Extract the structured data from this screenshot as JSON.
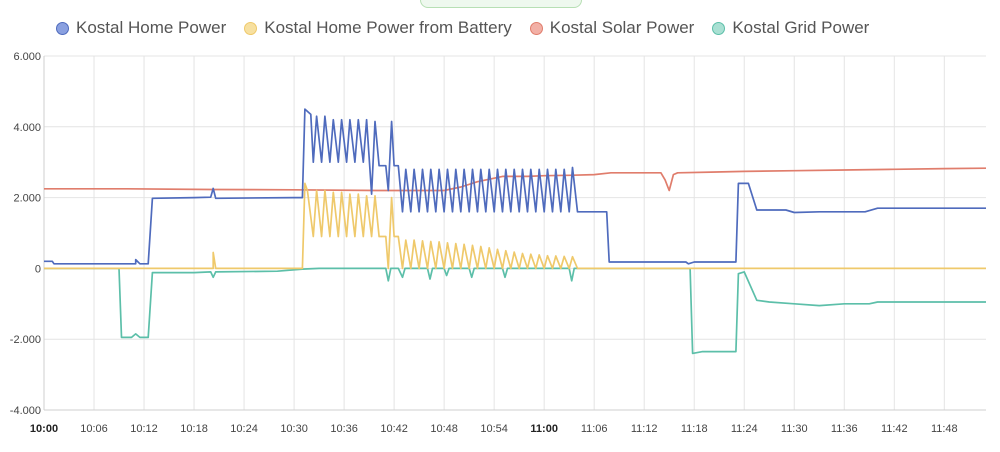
{
  "legend": [
    {
      "label": "Kostal Home Power",
      "color": "#4f6bbd"
    },
    {
      "label": "Kostal Home Power from Battery",
      "color": "#efc96b"
    },
    {
      "label": "Kostal Solar Power",
      "color": "#e07d6c"
    },
    {
      "label": "Kostal Grid Power",
      "color": "#5cbfa9"
    }
  ],
  "chart_data": {
    "type": "line",
    "title": "",
    "xlabel": "",
    "ylabel": "",
    "ylim": [
      -4000,
      6000
    ],
    "xlim": [
      "10:00",
      "11:53"
    ],
    "y_ticks": [
      6000,
      4000,
      2000,
      0,
      -2000,
      -4000
    ],
    "y_tick_labels": [
      "6.000",
      "4.000",
      "2.000",
      "0",
      "-2.000",
      "-4.000"
    ],
    "x_ticks": [
      "10:00",
      "10:06",
      "10:12",
      "10:18",
      "10:24",
      "10:30",
      "10:36",
      "10:42",
      "10:48",
      "10:54",
      "11:00",
      "11:06",
      "11:12",
      "11:18",
      "11:24",
      "11:30",
      "11:36",
      "11:42",
      "11:48"
    ],
    "x_bold_ticks": [
      "10:00",
      "11:00"
    ],
    "grid": true,
    "legend_position": "top",
    "series": [
      {
        "name": "Kostal Home Power",
        "color": "#4f6bbd",
        "points": [
          [
            "10:00",
            200
          ],
          [
            "10:01",
            200
          ],
          [
            "10:01.2",
            130
          ],
          [
            "10:11",
            130
          ],
          [
            "10:11",
            250
          ],
          [
            "10:11.5",
            130
          ],
          [
            "10:12.5",
            130
          ],
          [
            "10:13",
            1980
          ],
          [
            "10:18",
            2000
          ],
          [
            "10:20",
            2010
          ],
          [
            "10:20.3",
            2260
          ],
          [
            "10:20.6",
            1980
          ],
          [
            "10:30",
            2000
          ],
          [
            "10:31",
            2000
          ],
          [
            "10:31.3",
            4500
          ],
          [
            "10:32",
            4350
          ],
          [
            "10:32.3",
            3000
          ],
          [
            "10:32.7",
            4300
          ],
          [
            "10:33.3",
            3000
          ],
          [
            "10:33.7",
            4300
          ],
          [
            "10:34.3",
            3000
          ],
          [
            "10:34.7",
            4200
          ],
          [
            "10:35.3",
            3000
          ],
          [
            "10:35.7",
            4200
          ],
          [
            "10:36.3",
            3000
          ],
          [
            "10:36.7",
            4200
          ],
          [
            "10:37.3",
            3000
          ],
          [
            "10:37.7",
            4200
          ],
          [
            "10:38.3",
            3000
          ],
          [
            "10:38.7",
            4200
          ],
          [
            "10:39.3",
            2100
          ],
          [
            "10:39.7",
            4150
          ],
          [
            "10:40.2",
            2900
          ],
          [
            "10:41",
            2900
          ],
          [
            "10:41.3",
            2200
          ],
          [
            "10:41.7",
            4150
          ],
          [
            "10:42",
            2900
          ],
          [
            "10:42.5",
            2900
          ],
          [
            "10:43",
            1600
          ],
          [
            "10:43.4",
            2800
          ],
          [
            "10:44",
            1600
          ],
          [
            "10:44.4",
            2800
          ],
          [
            "10:45",
            1600
          ],
          [
            "10:45.4",
            2800
          ],
          [
            "10:46",
            1600
          ],
          [
            "10:46.4",
            2800
          ],
          [
            "10:47",
            1600
          ],
          [
            "10:47.4",
            2800
          ],
          [
            "10:48",
            1600
          ],
          [
            "10:48.4",
            2800
          ],
          [
            "10:49",
            1600
          ],
          [
            "10:49.4",
            2800
          ],
          [
            "10:50",
            1600
          ],
          [
            "10:50.4",
            2800
          ],
          [
            "10:51",
            1600
          ],
          [
            "10:51.4",
            2800
          ],
          [
            "10:52",
            1600
          ],
          [
            "10:52.4",
            2800
          ],
          [
            "10:53",
            1600
          ],
          [
            "10:53.4",
            2800
          ],
          [
            "10:54",
            1600
          ],
          [
            "10:54.4",
            2800
          ],
          [
            "10:55",
            1600
          ],
          [
            "10:55.4",
            2800
          ],
          [
            "10:56",
            1600
          ],
          [
            "10:56.4",
            2800
          ],
          [
            "10:57",
            1600
          ],
          [
            "10:57.4",
            2800
          ],
          [
            "10:58",
            1600
          ],
          [
            "10:58.4",
            2800
          ],
          [
            "10:59",
            1600
          ],
          [
            "10:59.4",
            2800
          ],
          [
            "11:00",
            1600
          ],
          [
            "11:00.4",
            2800
          ],
          [
            "11:01",
            1600
          ],
          [
            "11:01.4",
            2800
          ],
          [
            "11:02",
            1600
          ],
          [
            "11:02.4",
            2800
          ],
          [
            "11:03",
            1600
          ],
          [
            "11:03.4",
            2850
          ],
          [
            "11:04",
            1600
          ],
          [
            "11:07.5",
            1600
          ],
          [
            "11:07.8",
            180
          ],
          [
            "11:17",
            180
          ],
          [
            "11:17.3",
            130
          ],
          [
            "11:18",
            180
          ],
          [
            "11:22",
            180
          ],
          [
            "11:23",
            180
          ],
          [
            "11:23.3",
            2400
          ],
          [
            "11:24.5",
            2400
          ],
          [
            "11:25.5",
            1650
          ],
          [
            "11:29",
            1650
          ],
          [
            "11:30",
            1580
          ],
          [
            "11:33",
            1600
          ],
          [
            "11:36",
            1600
          ],
          [
            "11:38.5",
            1600
          ],
          [
            "11:40",
            1700
          ],
          [
            "11:44",
            1700
          ],
          [
            "11:50",
            1700
          ],
          [
            "11:53",
            1700
          ]
        ]
      },
      {
        "name": "Kostal Home Power from Battery",
        "color": "#efc96b",
        "points": [
          [
            "10:00",
            0
          ],
          [
            "10:20.3",
            0
          ],
          [
            "10:20.3",
            450
          ],
          [
            "10:20.6",
            0
          ],
          [
            "10:31",
            0
          ],
          [
            "10:31.3",
            2400
          ],
          [
            "10:31.6",
            2200
          ],
          [
            "10:32.3",
            900
          ],
          [
            "10:32.7",
            2200
          ],
          [
            "10:33.3",
            900
          ],
          [
            "10:33.7",
            2200
          ],
          [
            "10:34.3",
            900
          ],
          [
            "10:34.7",
            2150
          ],
          [
            "10:35.3",
            900
          ],
          [
            "10:35.7",
            2150
          ],
          [
            "10:36.3",
            900
          ],
          [
            "10:36.7",
            2100
          ],
          [
            "10:37.3",
            900
          ],
          [
            "10:37.7",
            2100
          ],
          [
            "10:38.3",
            900
          ],
          [
            "10:38.7",
            2050
          ],
          [
            "10:39.3",
            900
          ],
          [
            "10:39.7",
            2050
          ],
          [
            "10:40.2",
            900
          ],
          [
            "10:41",
            900
          ],
          [
            "10:41.3",
            0
          ],
          [
            "10:41.7",
            2000
          ],
          [
            "10:42",
            900
          ],
          [
            "10:42.5",
            900
          ],
          [
            "10:43",
            0
          ],
          [
            "10:43.4",
            800
          ],
          [
            "10:44",
            0
          ],
          [
            "10:44.4",
            800
          ],
          [
            "10:45",
            0
          ],
          [
            "10:45.4",
            780
          ],
          [
            "10:46",
            0
          ],
          [
            "10:46.4",
            760
          ],
          [
            "10:47",
            0
          ],
          [
            "10:47.4",
            750
          ],
          [
            "10:48",
            0
          ],
          [
            "10:48.4",
            720
          ],
          [
            "10:49",
            0
          ],
          [
            "10:49.4",
            700
          ],
          [
            "10:50",
            0
          ],
          [
            "10:50.4",
            680
          ],
          [
            "10:51",
            0
          ],
          [
            "10:51.4",
            650
          ],
          [
            "10:52",
            0
          ],
          [
            "10:52.4",
            620
          ],
          [
            "10:53",
            0
          ],
          [
            "10:53.4",
            580
          ],
          [
            "10:54",
            0
          ],
          [
            "10:54.4",
            540
          ],
          [
            "10:55",
            0
          ],
          [
            "10:55.4",
            500
          ],
          [
            "10:56",
            0
          ],
          [
            "10:56.4",
            460
          ],
          [
            "10:57",
            0
          ],
          [
            "10:57.4",
            420
          ],
          [
            "10:58",
            0
          ],
          [
            "10:58.4",
            400
          ],
          [
            "10:59",
            0
          ],
          [
            "10:59.4",
            380
          ],
          [
            "11:00",
            0
          ],
          [
            "11:00.4",
            360
          ],
          [
            "11:01",
            0
          ],
          [
            "11:01.4",
            350
          ],
          [
            "11:02",
            0
          ],
          [
            "11:02.4",
            340
          ],
          [
            "11:03",
            0
          ],
          [
            "11:03.4",
            330
          ],
          [
            "11:04",
            0
          ],
          [
            "11:53",
            0
          ]
        ]
      },
      {
        "name": "Kostal Solar Power",
        "color": "#e07d6c",
        "points": [
          [
            "10:00",
            2250
          ],
          [
            "10:10",
            2250
          ],
          [
            "10:20",
            2230
          ],
          [
            "10:30",
            2220
          ],
          [
            "10:40",
            2200
          ],
          [
            "10:48",
            2200
          ],
          [
            "10:50",
            2300
          ],
          [
            "10:52",
            2450
          ],
          [
            "10:55",
            2600
          ],
          [
            "10:58",
            2600
          ],
          [
            "11:00",
            2620
          ],
          [
            "11:03",
            2630
          ],
          [
            "11:06",
            2650
          ],
          [
            "11:08",
            2700
          ],
          [
            "11:14",
            2700
          ],
          [
            "11:14.5",
            2500
          ],
          [
            "11:15",
            2200
          ],
          [
            "11:15.5",
            2650
          ],
          [
            "11:16",
            2700
          ],
          [
            "11:20",
            2720
          ],
          [
            "11:24",
            2740
          ],
          [
            "11:30",
            2760
          ],
          [
            "11:36",
            2780
          ],
          [
            "11:42",
            2800
          ],
          [
            "11:48",
            2820
          ],
          [
            "11:53",
            2830
          ]
        ]
      },
      {
        "name": "Kostal Grid Power",
        "color": "#5cbfa9",
        "points": [
          [
            "10:00",
            0
          ],
          [
            "10:09",
            0
          ],
          [
            "10:09.3",
            -1950
          ],
          [
            "10:10.5",
            -1950
          ],
          [
            "10:11",
            -1850
          ],
          [
            "10:11.5",
            -1950
          ],
          [
            "10:12.5",
            -1950
          ],
          [
            "10:13",
            -120
          ],
          [
            "10:18",
            -120
          ],
          [
            "10:20",
            -100
          ],
          [
            "10:20.3",
            -250
          ],
          [
            "10:20.6",
            -100
          ],
          [
            "10:28",
            -80
          ],
          [
            "10:31",
            -20
          ],
          [
            "10:33",
            0
          ],
          [
            "10:41",
            0
          ],
          [
            "10:41.3",
            -350
          ],
          [
            "10:41.6",
            0
          ],
          [
            "10:42.5",
            0
          ],
          [
            "10:43",
            -250
          ],
          [
            "10:43.3",
            0
          ],
          [
            "10:46",
            0
          ],
          [
            "10:46.3",
            -300
          ],
          [
            "10:46.6",
            0
          ],
          [
            "10:48",
            0
          ],
          [
            "10:48.3",
            -200
          ],
          [
            "10:48.6",
            0
          ],
          [
            "10:51",
            0
          ],
          [
            "10:51.3",
            -250
          ],
          [
            "10:51.6",
            0
          ],
          [
            "10:55",
            0
          ],
          [
            "10:55.3",
            -250
          ],
          [
            "10:55.6",
            0
          ],
          [
            "11:03",
            0
          ],
          [
            "11:03.3",
            -350
          ],
          [
            "11:03.6",
            0
          ],
          [
            "11:17.5",
            0
          ],
          [
            "11:17.8",
            -2400
          ],
          [
            "11:19",
            -2350
          ],
          [
            "11:22.5",
            -2350
          ],
          [
            "11:23",
            -2350
          ],
          [
            "11:23.3",
            -150
          ],
          [
            "11:24",
            -100
          ],
          [
            "11:25.5",
            -900
          ],
          [
            "11:27",
            -950
          ],
          [
            "11:30",
            -1000
          ],
          [
            "11:33",
            -1050
          ],
          [
            "11:36",
            -1000
          ],
          [
            "11:39",
            -1000
          ],
          [
            "11:40",
            -950
          ],
          [
            "11:44",
            -950
          ],
          [
            "11:50",
            -950
          ],
          [
            "11:53",
            -950
          ]
        ]
      }
    ]
  }
}
